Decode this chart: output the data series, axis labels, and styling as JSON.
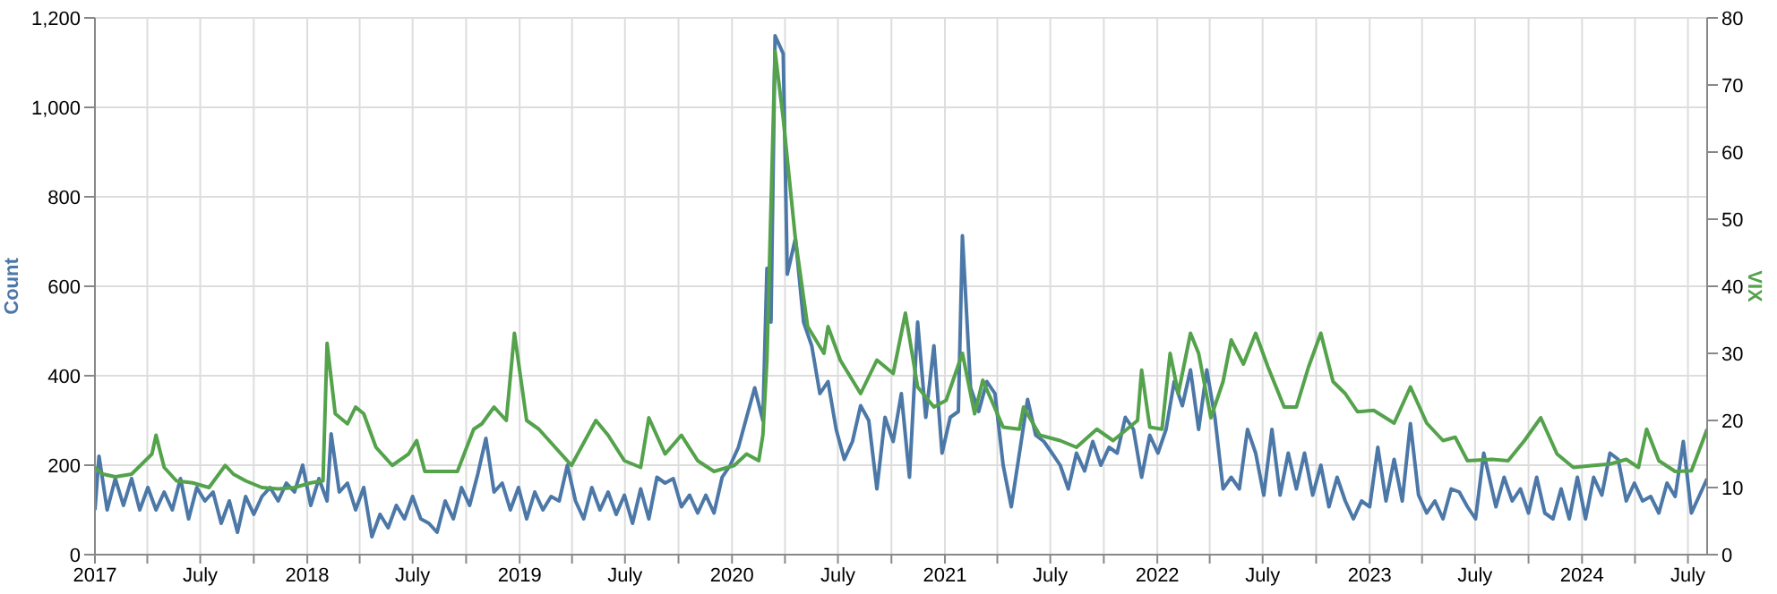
{
  "chart_data": {
    "type": "line",
    "ylabel": "Count",
    "y2label": "VIX",
    "grid": true,
    "marker": "none",
    "line_style": "solid",
    "xlim": [
      "2017-01-01",
      "2024-08-03"
    ],
    "xticks": [
      {
        "value": "2017-01-01",
        "label": "2017"
      },
      {
        "value": "2017-04-01",
        "label": null
      },
      {
        "value": "2017-07-01",
        "label": "July"
      },
      {
        "value": "2017-10-01",
        "label": null
      },
      {
        "value": "2018-01-01",
        "label": "2018"
      },
      {
        "value": "2018-04-01",
        "label": null
      },
      {
        "value": "2018-07-01",
        "label": "July"
      },
      {
        "value": "2018-10-01",
        "label": null
      },
      {
        "value": "2019-01-01",
        "label": "2019"
      },
      {
        "value": "2019-04-01",
        "label": null
      },
      {
        "value": "2019-07-01",
        "label": "July"
      },
      {
        "value": "2019-10-01",
        "label": null
      },
      {
        "value": "2020-01-01",
        "label": "2020"
      },
      {
        "value": "2020-04-01",
        "label": null
      },
      {
        "value": "2020-07-01",
        "label": "July"
      },
      {
        "value": "2020-10-01",
        "label": null
      },
      {
        "value": "2021-01-01",
        "label": "2021"
      },
      {
        "value": "2021-04-01",
        "label": null
      },
      {
        "value": "2021-07-01",
        "label": "July"
      },
      {
        "value": "2021-10-01",
        "label": null
      },
      {
        "value": "2022-01-01",
        "label": "2022"
      },
      {
        "value": "2022-04-01",
        "label": null
      },
      {
        "value": "2022-07-01",
        "label": "July"
      },
      {
        "value": "2022-10-01",
        "label": null
      },
      {
        "value": "2023-01-01",
        "label": "2023"
      },
      {
        "value": "2023-04-01",
        "label": null
      },
      {
        "value": "2023-07-01",
        "label": "July"
      },
      {
        "value": "2023-10-01",
        "label": null
      },
      {
        "value": "2024-01-01",
        "label": "2024"
      },
      {
        "value": "2024-04-01",
        "label": null
      },
      {
        "value": "2024-07-01",
        "label": "July"
      }
    ],
    "ylim": [
      0,
      1200
    ],
    "yticks": [
      0,
      200,
      400,
      600,
      800,
      {
        "value": 1000,
        "label": "1,000"
      },
      {
        "value": 1200,
        "label": "1,200"
      }
    ],
    "y2lim": [
      0,
      80
    ],
    "y2ticks": [
      0,
      10,
      20,
      30,
      40,
      50,
      60,
      70,
      80
    ],
    "series": [
      {
        "color": "#4c78a8",
        "x": [
          "2017-01-01",
          "2017-01-08",
          "2017-01-22",
          "2017-02-05",
          "2017-02-19",
          "2017-03-05",
          "2017-03-19",
          "2017-04-02",
          "2017-04-16",
          "2017-04-30",
          "2017-05-14",
          "2017-05-28",
          "2017-06-11",
          "2017-06-25",
          "2017-07-09",
          "2017-07-23",
          "2017-08-06",
          "2017-08-20",
          "2017-09-03",
          "2017-09-17",
          "2017-10-01",
          "2017-10-15",
          "2017-10-29",
          "2017-11-12",
          "2017-11-26",
          "2017-12-10",
          "2017-12-24",
          "2018-01-07",
          "2018-01-21",
          "2018-02-04",
          "2018-02-11",
          "2018-02-25",
          "2018-03-11",
          "2018-03-25",
          "2018-04-08",
          "2018-04-22",
          "2018-05-06",
          "2018-05-20",
          "2018-06-03",
          "2018-06-17",
          "2018-07-01",
          "2018-07-15",
          "2018-07-29",
          "2018-08-12",
          "2018-08-26",
          "2018-09-09",
          "2018-09-23",
          "2018-10-07",
          "2018-10-21",
          "2018-11-04",
          "2018-11-18",
          "2018-12-02",
          "2018-12-16",
          "2018-12-30",
          "2019-01-13",
          "2019-01-27",
          "2019-02-10",
          "2019-02-24",
          "2019-03-10",
          "2019-03-24",
          "2019-04-07",
          "2019-04-21",
          "2019-05-05",
          "2019-05-19",
          "2019-06-02",
          "2019-06-16",
          "2019-06-30",
          "2019-07-14",
          "2019-07-28",
          "2019-08-11",
          "2019-08-25",
          "2019-09-08",
          "2019-09-22",
          "2019-10-06",
          "2019-10-20",
          "2019-11-03",
          "2019-11-17",
          "2019-12-01",
          "2019-12-15",
          "2019-12-29",
          "2020-01-12",
          "2020-01-26",
          "2020-02-09",
          "2020-02-23",
          "2020-03-01",
          "2020-03-08",
          "2020-03-15",
          "2020-03-29",
          "2020-04-05",
          "2020-04-19",
          "2020-05-03",
          "2020-05-17",
          "2020-05-31",
          "2020-06-14",
          "2020-06-28",
          "2020-07-12",
          "2020-07-26",
          "2020-08-09",
          "2020-08-23",
          "2020-09-06",
          "2020-09-20",
          "2020-10-04",
          "2020-10-18",
          "2020-11-01",
          "2020-11-15",
          "2020-11-29",
          "2020-12-13",
          "2020-12-27",
          "2021-01-10",
          "2021-01-24",
          "2021-01-31",
          "2021-02-14",
          "2021-02-28",
          "2021-03-14",
          "2021-03-28",
          "2021-04-11",
          "2021-04-25",
          "2021-05-09",
          "2021-05-23",
          "2021-06-06",
          "2021-06-20",
          "2021-07-04",
          "2021-07-18",
          "2021-08-01",
          "2021-08-15",
          "2021-08-29",
          "2021-09-12",
          "2021-09-26",
          "2021-10-10",
          "2021-10-24",
          "2021-11-07",
          "2021-11-21",
          "2021-12-05",
          "2021-12-19",
          "2022-01-02",
          "2022-01-16",
          "2022-01-30",
          "2022-02-13",
          "2022-02-27",
          "2022-03-13",
          "2022-03-27",
          "2022-04-10",
          "2022-04-24",
          "2022-05-08",
          "2022-05-22",
          "2022-06-05",
          "2022-06-19",
          "2022-07-03",
          "2022-07-17",
          "2022-07-31",
          "2022-08-14",
          "2022-08-28",
          "2022-09-11",
          "2022-09-25",
          "2022-10-09",
          "2022-10-23",
          "2022-11-06",
          "2022-11-20",
          "2022-12-04",
          "2022-12-18",
          "2023-01-01",
          "2023-01-15",
          "2023-01-29",
          "2023-02-12",
          "2023-02-26",
          "2023-03-12",
          "2023-03-26",
          "2023-04-09",
          "2023-04-23",
          "2023-05-07",
          "2023-05-21",
          "2023-06-04",
          "2023-06-18",
          "2023-07-02",
          "2023-07-16",
          "2023-08-06",
          "2023-08-20",
          "2023-09-03",
          "2023-09-17",
          "2023-10-01",
          "2023-10-15",
          "2023-10-29",
          "2023-11-12",
          "2023-11-26",
          "2023-12-10",
          "2023-12-24",
          "2024-01-07",
          "2024-01-21",
          "2024-02-04",
          "2024-02-18",
          "2024-03-03",
          "2024-03-17",
          "2024-03-31",
          "2024-04-14",
          "2024-04-28",
          "2024-05-12",
          "2024-05-26",
          "2024-06-09",
          "2024-06-23",
          "2024-07-07",
          "2024-07-21",
          "2024-08-03"
        ],
        "values": [
          100,
          220,
          100,
          170,
          110,
          170,
          100,
          150,
          100,
          140,
          100,
          170,
          80,
          150,
          120,
          140,
          70,
          120,
          50,
          130,
          90,
          130,
          150,
          120,
          160,
          140,
          200,
          110,
          170,
          120,
          270,
          140,
          160,
          100,
          150,
          40,
          90,
          60,
          110,
          80,
          130,
          80,
          70,
          50,
          120,
          80,
          150,
          110,
          180,
          260,
          140,
          160,
          100,
          150,
          80,
          140,
          100,
          130,
          120,
          200,
          120,
          80,
          150,
          100,
          140,
          90,
          133,
          70,
          147,
          80,
          173,
          160,
          170,
          107,
          133,
          93,
          133,
          93,
          173,
          200,
          240,
          307,
          373,
          300,
          640,
          520,
          1160,
          1120,
          627,
          707,
          520,
          467,
          360,
          387,
          280,
          213,
          253,
          333,
          300,
          147,
          307,
          253,
          360,
          173,
          520,
          307,
          467,
          227,
          307,
          320,
          713,
          373,
          320,
          387,
          360,
          200,
          107,
          227,
          347,
          267,
          253,
          227,
          200,
          147,
          227,
          187,
          253,
          200,
          240,
          227,
          307,
          280,
          173,
          267,
          227,
          280,
          387,
          333,
          413,
          280,
          413,
          307,
          147,
          173,
          147,
          280,
          227,
          133,
          280,
          133,
          227,
          147,
          227,
          133,
          200,
          107,
          173,
          120,
          80,
          120,
          107,
          240,
          120,
          213,
          120,
          293,
          133,
          93,
          120,
          80,
          147,
          140,
          107,
          80,
          227,
          107,
          173,
          120,
          147,
          93,
          173,
          93,
          80,
          147,
          80,
          173,
          80,
          173,
          133,
          227,
          213,
          120,
          160,
          120,
          130,
          93,
          160,
          130,
          253,
          93,
          133,
          170
        ]
      },
      {
        "color": "#54a24b",
        "axis": "y2",
        "x": [
          "2017-01-01",
          "2017-01-15",
          "2017-02-05",
          "2017-03-05",
          "2017-04-09",
          "2017-04-16",
          "2017-04-30",
          "2017-05-21",
          "2017-06-18",
          "2017-07-16",
          "2017-08-13",
          "2017-08-27",
          "2017-09-17",
          "2017-10-15",
          "2017-11-12",
          "2017-12-10",
          "2018-01-07",
          "2018-01-28",
          "2018-02-04",
          "2018-02-18",
          "2018-03-11",
          "2018-03-25",
          "2018-04-08",
          "2018-04-29",
          "2018-05-27",
          "2018-06-24",
          "2018-07-08",
          "2018-07-22",
          "2018-08-19",
          "2018-09-16",
          "2018-10-14",
          "2018-10-28",
          "2018-11-18",
          "2018-12-09",
          "2018-12-23",
          "2019-01-13",
          "2019-02-03",
          "2019-03-03",
          "2019-03-31",
          "2019-05-12",
          "2019-06-02",
          "2019-06-30",
          "2019-07-28",
          "2019-08-11",
          "2019-09-08",
          "2019-10-06",
          "2019-11-03",
          "2019-12-01",
          "2020-01-05",
          "2020-01-26",
          "2020-02-16",
          "2020-02-23",
          "2020-03-01",
          "2020-03-15",
          "2020-03-29",
          "2020-04-19",
          "2020-05-10",
          "2020-06-07",
          "2020-06-14",
          "2020-07-05",
          "2020-08-09",
          "2020-09-06",
          "2020-10-04",
          "2020-10-25",
          "2020-11-15",
          "2020-12-13",
          "2021-01-03",
          "2021-01-31",
          "2021-02-21",
          "2021-03-07",
          "2021-04-11",
          "2021-05-09",
          "2021-05-16",
          "2021-06-13",
          "2021-07-18",
          "2021-08-15",
          "2021-09-19",
          "2021-10-17",
          "2021-11-28",
          "2021-12-05",
          "2021-12-19",
          "2022-01-09",
          "2022-01-23",
          "2022-02-06",
          "2022-02-27",
          "2022-03-13",
          "2022-04-03",
          "2022-04-24",
          "2022-05-08",
          "2022-05-29",
          "2022-06-19",
          "2022-07-10",
          "2022-08-07",
          "2022-08-28",
          "2022-09-18",
          "2022-10-09",
          "2022-10-30",
          "2022-11-20",
          "2022-12-11",
          "2023-01-08",
          "2023-02-12",
          "2023-03-12",
          "2023-04-09",
          "2023-05-07",
          "2023-05-28",
          "2023-06-18",
          "2023-07-30",
          "2023-08-27",
          "2023-09-24",
          "2023-10-22",
          "2023-11-19",
          "2023-12-17",
          "2024-01-21",
          "2024-02-18",
          "2024-03-17",
          "2024-04-07",
          "2024-04-21",
          "2024-05-12",
          "2024-06-09",
          "2024-07-07",
          "2024-08-03"
        ],
        "values": [
          13,
          12,
          11.6,
          12,
          15,
          17.8,
          13,
          11,
          10.7,
          10,
          13.3,
          12,
          11,
          10,
          9.8,
          10,
          10.7,
          11,
          31.5,
          21,
          19.5,
          22,
          21,
          16,
          13.3,
          15,
          17,
          12.4,
          12.4,
          12.4,
          18.7,
          19.5,
          22,
          20,
          33,
          20,
          18.7,
          16,
          13.3,
          20,
          17.8,
          14,
          13,
          20.4,
          15,
          17.8,
          14,
          12.4,
          13.3,
          15,
          14,
          17.8,
          29,
          75,
          65,
          47,
          34,
          30,
          34,
          29,
          24,
          29,
          27,
          36,
          25,
          22,
          23,
          30,
          21,
          26,
          19,
          18.7,
          22,
          17.8,
          17,
          16,
          18.7,
          17,
          20,
          27.5,
          19,
          18.7,
          30,
          24,
          33,
          30,
          20.4,
          25.8,
          32,
          28.4,
          33,
          28,
          22,
          22,
          28,
          33,
          25.8,
          24,
          21.3,
          21.5,
          19.6,
          25,
          19.6,
          17,
          17.5,
          14,
          14.2,
          14,
          17,
          20.4,
          15,
          13,
          13.3,
          13.5,
          14.2,
          13,
          18.7,
          14,
          12.4,
          12.5,
          18.7
        ]
      }
    ]
  }
}
